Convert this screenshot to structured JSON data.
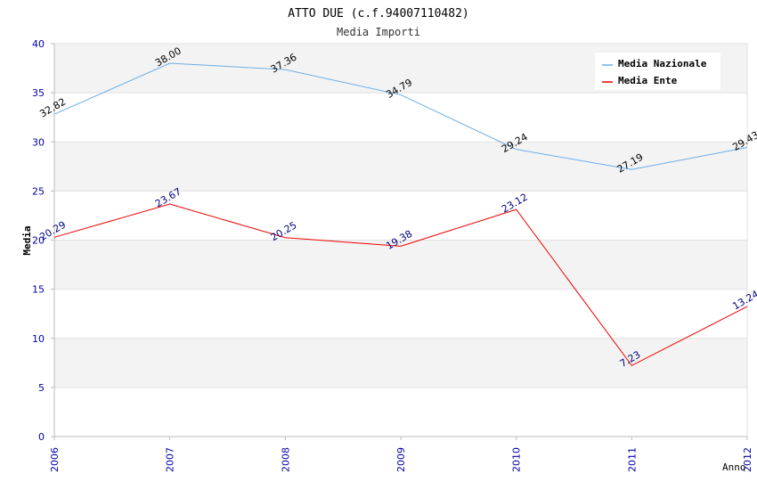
{
  "chart_data": {
    "type": "line",
    "title": "ATTO DUE (c.f.94007110482)",
    "subtitle": "Media Importi",
    "xlabel": "Anno",
    "ylabel": "Media",
    "categories": [
      "2006",
      "2007",
      "2008",
      "2009",
      "2010",
      "2011",
      "2012"
    ],
    "ylim": [
      0,
      40
    ],
    "yticks": [
      0,
      5,
      10,
      15,
      20,
      25,
      30,
      35,
      40
    ],
    "grid": true,
    "legend_position": "top-right",
    "series": [
      {
        "name": "Media Nazionale",
        "color": "#6aaeea",
        "label_color": "#000000",
        "values": [
          32.82,
          38.0,
          37.36,
          34.79,
          29.24,
          27.19,
          29.43
        ],
        "labels": [
          "32.82",
          "38.00",
          "37.36",
          "34.79",
          "29.24",
          "27.19",
          "29.43"
        ]
      },
      {
        "name": "Media Ente",
        "color": "#ee0000",
        "label_color": "#000080",
        "values": [
          20.29,
          23.67,
          20.25,
          19.38,
          23.12,
          7.23,
          13.24
        ],
        "labels": [
          "20.29",
          "23.67",
          "20.25",
          "19.38",
          "23.12",
          "7.23",
          "13.24"
        ]
      }
    ]
  }
}
